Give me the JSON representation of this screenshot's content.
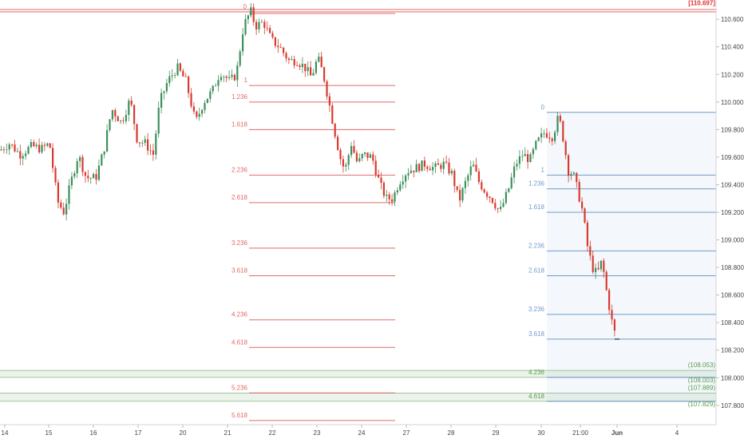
{
  "chart_data": {
    "type": "candlestick",
    "title": "",
    "xlabel": "",
    "ylabel": "",
    "ylim": [
      107.66,
      110.74
    ],
    "grid": false,
    "legend": "none",
    "x_ticks": [
      "14",
      "15",
      "16",
      "17",
      "20",
      "21",
      "22",
      "23",
      "24",
      "27",
      "28",
      "29",
      "30",
      "21:00",
      "Jun",
      "4"
    ],
    "y_ticks": [
      "110.600",
      "110.400",
      "110.200",
      "110.000",
      "109.800",
      "109.600",
      "109.400",
      "109.200",
      "109.000",
      "108.800",
      "108.600",
      "108.400",
      "108.200",
      "108.000",
      "107.800"
    ],
    "price_labels_right": [
      {
        "text": "[110.697]",
        "value": 110.697,
        "color": "#e03030"
      },
      {
        "text": "(108.053)",
        "value": 108.053,
        "color": "#5a9a50"
      },
      {
        "text": "(108.003)",
        "value": 108.003,
        "color": "#5a9a50"
      },
      {
        "text": "(107.889)",
        "value": 107.889,
        "color": "#5a9a50"
      },
      {
        "text": "(107.829)",
        "value": 107.829,
        "color": "#5a9a50"
      }
    ],
    "fib_extension_red": {
      "color": "#e06a6a",
      "levels": [
        {
          "label": "0",
          "value": 110.66
        },
        {
          "label": "1",
          "value": 110.12
        },
        {
          "label": "1.236",
          "value": 110.0
        },
        {
          "label": "1.618",
          "value": 109.8
        },
        {
          "label": "2.236",
          "value": 109.47
        },
        {
          "label": "2.618",
          "value": 109.27
        },
        {
          "label": "3.236",
          "value": 108.94
        },
        {
          "label": "3.618",
          "value": 108.74
        },
        {
          "label": "4.236",
          "value": 108.42
        },
        {
          "label": "4.618",
          "value": 108.22
        },
        {
          "label": "5.236",
          "value": 107.89
        },
        {
          "label": "5.618",
          "value": 107.69
        }
      ]
    },
    "fib_extension_blue": {
      "color": "#6f9ac8",
      "levels": [
        {
          "label": "0",
          "value": 109.925
        },
        {
          "label": "1",
          "value": 109.47
        },
        {
          "label": "1.236",
          "value": 109.37
        },
        {
          "label": "1.618",
          "value": 109.2
        },
        {
          "label": "2.236",
          "value": 108.92
        },
        {
          "label": "2.618",
          "value": 108.74
        },
        {
          "label": "3.236",
          "value": 108.46
        },
        {
          "label": "3.618",
          "value": 108.28
        },
        {
          "label": "4.236",
          "value": 108.003
        },
        {
          "label": "4.618",
          "value": 107.829
        }
      ]
    },
    "zones": [
      {
        "from": 108.003,
        "to": 108.053,
        "color": "#5a9a50"
      },
      {
        "from": 107.829,
        "to": 107.889,
        "color": "#5a9a50"
      }
    ],
    "candles": {
      "up_color": "#3d8f5b",
      "down_color": "#d93a2e",
      "anchors": [
        {
          "x": 0,
          "close": 109.65
        },
        {
          "x": 12,
          "close": 109.7
        },
        {
          "x": 25,
          "close": 109.62
        },
        {
          "x": 40,
          "close": 109.68
        },
        {
          "x": 52,
          "close": 109.66
        },
        {
          "x": 62,
          "close": 109.7
        },
        {
          "x": 72,
          "close": 109.28
        },
        {
          "x": 80,
          "close": 109.2
        },
        {
          "x": 88,
          "close": 109.4
        },
        {
          "x": 98,
          "close": 109.62
        },
        {
          "x": 108,
          "close": 109.45
        },
        {
          "x": 120,
          "close": 109.45
        },
        {
          "x": 130,
          "close": 109.65
        },
        {
          "x": 140,
          "close": 109.95
        },
        {
          "x": 152,
          "close": 109.85
        },
        {
          "x": 163,
          "close": 110.02
        },
        {
          "x": 172,
          "close": 109.72
        },
        {
          "x": 182,
          "close": 109.7
        },
        {
          "x": 192,
          "close": 109.62
        },
        {
          "x": 200,
          "close": 110.0
        },
        {
          "x": 210,
          "close": 110.15
        },
        {
          "x": 222,
          "close": 110.25
        },
        {
          "x": 233,
          "close": 110.15
        },
        {
          "x": 245,
          "close": 109.85
        },
        {
          "x": 255,
          "close": 110.0
        },
        {
          "x": 266,
          "close": 110.08
        },
        {
          "x": 276,
          "close": 110.22
        },
        {
          "x": 288,
          "close": 110.15
        },
        {
          "x": 296,
          "close": 110.2
        },
        {
          "x": 305,
          "close": 110.55
        },
        {
          "x": 314,
          "close": 110.66
        },
        {
          "x": 320,
          "close": 110.55
        },
        {
          "x": 330,
          "close": 110.58
        },
        {
          "x": 340,
          "close": 110.45
        },
        {
          "x": 350,
          "close": 110.4
        },
        {
          "x": 362,
          "close": 110.3
        },
        {
          "x": 372,
          "close": 110.3
        },
        {
          "x": 382,
          "close": 110.25
        },
        {
          "x": 390,
          "close": 110.18
        },
        {
          "x": 398,
          "close": 110.32
        },
        {
          "x": 405,
          "close": 110.2
        },
        {
          "x": 412,
          "close": 110.0
        },
        {
          "x": 418,
          "close": 109.82
        },
        {
          "x": 426,
          "close": 109.6
        },
        {
          "x": 432,
          "close": 109.5
        },
        {
          "x": 440,
          "close": 109.7
        },
        {
          "x": 448,
          "close": 109.55
        },
        {
          "x": 455,
          "close": 109.62
        },
        {
          "x": 466,
          "close": 109.6
        },
        {
          "x": 476,
          "close": 109.4
        },
        {
          "x": 484,
          "close": 109.3
        },
        {
          "x": 492,
          "close": 109.3
        },
        {
          "x": 500,
          "close": 109.42
        },
        {
          "x": 510,
          "close": 109.5
        },
        {
          "x": 520,
          "close": 109.52
        },
        {
          "x": 532,
          "close": 109.55
        },
        {
          "x": 544,
          "close": 109.52
        },
        {
          "x": 556,
          "close": 109.55
        },
        {
          "x": 566,
          "close": 109.48
        },
        {
          "x": 575,
          "close": 109.28
        },
        {
          "x": 582,
          "close": 109.4
        },
        {
          "x": 592,
          "close": 109.55
        },
        {
          "x": 600,
          "close": 109.42
        },
        {
          "x": 608,
          "close": 109.35
        },
        {
          "x": 616,
          "close": 109.3
        },
        {
          "x": 626,
          "close": 109.2
        },
        {
          "x": 636,
          "close": 109.35
        },
        {
          "x": 646,
          "close": 109.55
        },
        {
          "x": 655,
          "close": 109.62
        },
        {
          "x": 664,
          "close": 109.58
        },
        {
          "x": 672,
          "close": 109.7
        },
        {
          "x": 682,
          "close": 109.78
        },
        {
          "x": 692,
          "close": 109.75
        },
        {
          "x": 700,
          "close": 109.9
        },
        {
          "x": 706,
          "close": 109.72
        },
        {
          "x": 712,
          "close": 109.5
        },
        {
          "x": 718,
          "close": 109.48
        },
        {
          "x": 724,
          "close": 109.35
        },
        {
          "x": 730,
          "close": 109.2
        },
        {
          "x": 736,
          "close": 108.95
        },
        {
          "x": 742,
          "close": 108.8
        },
        {
          "x": 748,
          "close": 108.75
        },
        {
          "x": 754,
          "close": 108.85
        },
        {
          "x": 760,
          "close": 108.62
        },
        {
          "x": 766,
          "close": 108.42
        },
        {
          "x": 772,
          "close": 108.28
        }
      ]
    }
  }
}
